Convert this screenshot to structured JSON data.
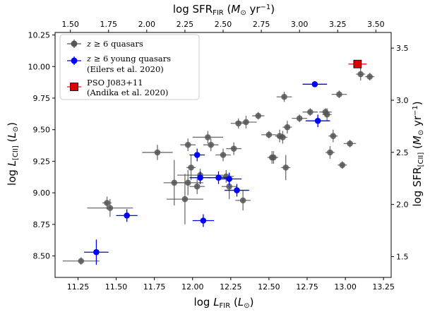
{
  "chart_data": {
    "type": "scatter",
    "xlabel": "log L_FIR (L⊙)",
    "ylabel": "log L_[CII] (L⊙)",
    "top_xlabel": "log SFR_FIR (M⊙ yr⁻¹)",
    "right_ylabel": "log SFR_[CII] (M⊙ yr⁻¹)",
    "xlim": [
      11.1,
      13.3
    ],
    "ylim": [
      8.33,
      10.27
    ],
    "top_xlim": [
      1.4,
      3.6
    ],
    "right_ylim": [
      1.3,
      3.65
    ],
    "x_ticks": [
      "11.25",
      "11.50",
      "11.75",
      "12.00",
      "12.25",
      "12.50",
      "12.75",
      "13.00",
      "13.25"
    ],
    "y_ticks": [
      "8.50",
      "8.75",
      "9.00",
      "9.25",
      "9.50",
      "9.75",
      "10.00",
      "10.25"
    ],
    "top_ticks": [
      "1.50",
      "1.75",
      "2.00",
      "2.25",
      "2.50",
      "2.75",
      "3.00",
      "3.25",
      "3.50"
    ],
    "right_ticks": [
      "1.5",
      "2.0",
      "2.5",
      "3.0",
      "3.5"
    ],
    "legend_position": "upper-left",
    "series": [
      {
        "name": "z ≥ 6 quasars",
        "color": "#555555",
        "marker": "circle",
        "points": [
          {
            "x": 11.27,
            "y": 8.46,
            "xerr": 0.12,
            "yerr": 0.03
          },
          {
            "x": 11.44,
            "y": 8.92,
            "xerr": 0.03,
            "yerr": 0.05
          },
          {
            "x": 11.46,
            "y": 8.88,
            "xerr": 0.15,
            "yerr": 0.07
          },
          {
            "x": 11.77,
            "y": 9.32,
            "xerr": 0.1,
            "yerr": 0.06
          },
          {
            "x": 11.88,
            "y": 9.08,
            "xerr": 0.07,
            "yerr": 0.18
          },
          {
            "x": 11.95,
            "y": 8.95,
            "xerr": 0.12,
            "yerr": 0.2
          },
          {
            "x": 11.97,
            "y": 9.38,
            "xerr": 0.05,
            "yerr": 0.05
          },
          {
            "x": 11.97,
            "y": 9.08,
            "xerr": 0.1,
            "yerr": 0.1
          },
          {
            "x": 11.99,
            "y": 9.2,
            "xerr": 0.03,
            "yerr": 0.1
          },
          {
            "x": 12.03,
            "y": 9.05,
            "xerr": 0.05,
            "yerr": 0.06
          },
          {
            "x": 12.05,
            "y": 9.14,
            "xerr": 0.15,
            "yerr": 0.05
          },
          {
            "x": 12.1,
            "y": 9.44,
            "xerr": 0.1,
            "yerr": 0.05
          },
          {
            "x": 12.12,
            "y": 9.38,
            "xerr": 0.05,
            "yerr": 0.05
          },
          {
            "x": 12.2,
            "y": 9.3,
            "xerr": 0.05,
            "yerr": 0.05
          },
          {
            "x": 12.22,
            "y": 9.13,
            "xerr": 0.05,
            "yerr": 0.05
          },
          {
            "x": 12.24,
            "y": 9.05,
            "xerr": 0.05,
            "yerr": 0.1
          },
          {
            "x": 12.27,
            "y": 9.35,
            "xerr": 0.05,
            "yerr": 0.05
          },
          {
            "x": 12.3,
            "y": 9.55,
            "xerr": 0.05,
            "yerr": 0.04
          },
          {
            "x": 12.33,
            "y": 8.94,
            "xerr": 0.05,
            "yerr": 0.08
          },
          {
            "x": 12.35,
            "y": 9.56,
            "xerr": 0.07,
            "yerr": 0.05
          },
          {
            "x": 12.43,
            "y": 9.61,
            "xerr": 0.04,
            "yerr": 0.03
          },
          {
            "x": 12.5,
            "y": 9.46,
            "xerr": 0.05,
            "yerr": 0.03
          },
          {
            "x": 12.52,
            "y": 9.28,
            "xerr": 0.03,
            "yerr": 0.05
          },
          {
            "x": 12.53,
            "y": 9.28,
            "xerr": 0.03,
            "yerr": 0.05
          },
          {
            "x": 12.57,
            "y": 9.45,
            "xerr": 0.03,
            "yerr": 0.05
          },
          {
            "x": 12.59,
            "y": 9.44,
            "xerr": 0.03,
            "yerr": 0.05
          },
          {
            "x": 12.6,
            "y": 9.76,
            "xerr": 0.05,
            "yerr": 0.04
          },
          {
            "x": 12.61,
            "y": 9.2,
            "xerr": 0.03,
            "yerr": 0.1
          },
          {
            "x": 12.62,
            "y": 9.52,
            "xerr": 0.03,
            "yerr": 0.05
          },
          {
            "x": 12.7,
            "y": 9.59,
            "xerr": 0.05,
            "yerr": 0.03
          },
          {
            "x": 12.77,
            "y": 9.64,
            "xerr": 0.05,
            "yerr": 0.03
          },
          {
            "x": 12.87,
            "y": 9.64,
            "xerr": 0.04,
            "yerr": 0.03
          },
          {
            "x": 12.88,
            "y": 9.62,
            "xerr": 0.03,
            "yerr": 0.05
          },
          {
            "x": 12.9,
            "y": 9.32,
            "xerr": 0.03,
            "yerr": 0.05
          },
          {
            "x": 12.92,
            "y": 9.45,
            "xerr": 0.03,
            "yerr": 0.05
          },
          {
            "x": 12.96,
            "y": 9.78,
            "xerr": 0.05,
            "yerr": 0.03
          },
          {
            "x": 12.98,
            "y": 9.22,
            "xerr": 0.03,
            "yerr": 0.03
          },
          {
            "x": 13.03,
            "y": 9.39,
            "xerr": 0.04,
            "yerr": 0.03
          },
          {
            "x": 13.1,
            "y": 9.94,
            "xerr": 0.03,
            "yerr": 0.05
          },
          {
            "x": 13.16,
            "y": 9.92,
            "xerr": 0.03,
            "yerr": 0.03
          }
        ]
      },
      {
        "name": "z ≥ 6 young quasars",
        "reference": "(Eilers et al. 2020)",
        "color": "#0000ff",
        "marker": "circle",
        "points": [
          {
            "x": 11.37,
            "y": 8.53,
            "xerr": 0.08,
            "yerr": 0.1
          },
          {
            "x": 11.57,
            "y": 8.82,
            "xerr": 0.07,
            "yerr": 0.05
          },
          {
            "x": 12.03,
            "y": 9.3,
            "xerr": 0.05,
            "yerr": 0.05
          },
          {
            "x": 12.05,
            "y": 9.12,
            "xerr": 0.07,
            "yerr": 0.05
          },
          {
            "x": 12.07,
            "y": 8.78,
            "xerr": 0.07,
            "yerr": 0.05
          },
          {
            "x": 12.17,
            "y": 9.12,
            "xerr": 0.07,
            "yerr": 0.05
          },
          {
            "x": 12.24,
            "y": 9.11,
            "xerr": 0.08,
            "yerr": 0.05
          },
          {
            "x": 12.29,
            "y": 9.02,
            "xerr": 0.08,
            "yerr": 0.05
          },
          {
            "x": 12.8,
            "y": 9.86,
            "xerr": 0.08,
            "yerr": 0.02
          },
          {
            "x": 12.82,
            "y": 9.57,
            "xerr": 0.08,
            "yerr": 0.05
          }
        ]
      },
      {
        "name": "PSO J083+11",
        "reference": "(Andika et al. 2020)",
        "color": "#ff0000",
        "marker": "square",
        "points": [
          {
            "x": 13.08,
            "y": 10.02,
            "xerr": 0.06,
            "yerr": 0.03
          }
        ]
      }
    ]
  }
}
